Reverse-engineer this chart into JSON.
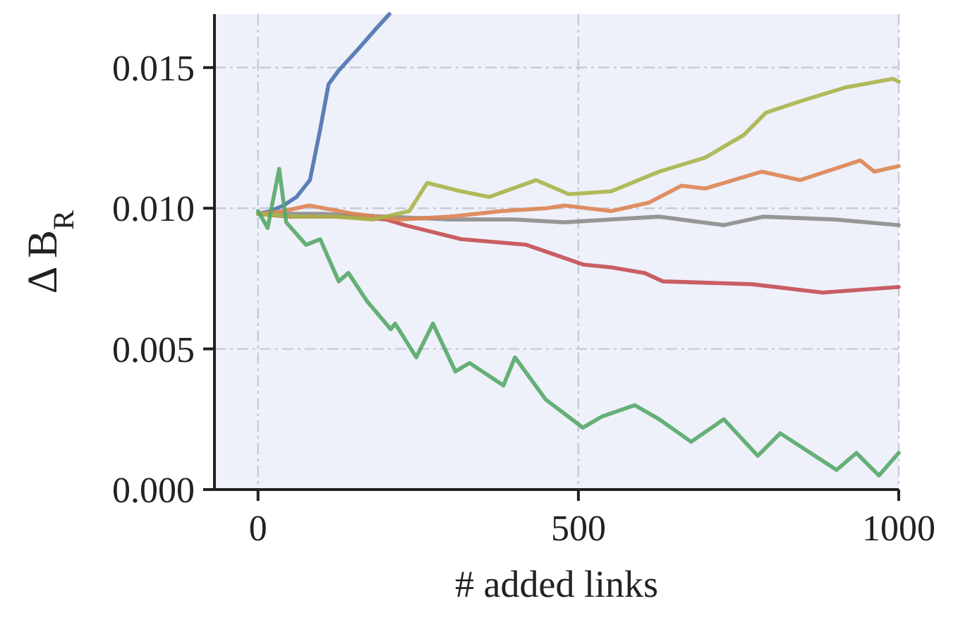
{
  "chart_data": {
    "type": "line",
    "xlabel": "# added links",
    "ylabel": "Δ B$_{R}$",
    "xlim": [
      -68,
      1000
    ],
    "ylim": [
      0,
      0.0169
    ],
    "xticks": [
      0,
      500,
      1000
    ],
    "yticks": [
      {
        "value": 0,
        "label": "0.000"
      },
      {
        "value": 0.005,
        "label": "0.005"
      },
      {
        "value": 0.01,
        "label": "0.010"
      },
      {
        "value": 0.015,
        "label": "0.015"
      }
    ],
    "grid": true,
    "line_style": "solid",
    "marker": "none",
    "series": [
      {
        "color": "#4c72b0",
        "x": [
          0,
          20,
          40,
          60,
          81,
          97,
          110,
          126,
          154,
          185,
          205
        ],
        "values": [
          0.0098,
          0.0099,
          0.0101,
          0.0104,
          0.011,
          0.0128,
          0.0144,
          0.0149,
          0.0156,
          0.0164,
          0.0169
        ]
      },
      {
        "color": "#c44e52",
        "x": [
          0,
          50,
          100,
          150,
          200,
          229,
          317,
          419,
          507,
          551,
          603,
          632,
          771,
          881,
          1000
        ],
        "values": [
          0.0098,
          0.0097,
          0.0097,
          0.0097,
          0.0096,
          0.0094,
          0.0089,
          0.0087,
          0.008,
          0.0079,
          0.0077,
          0.0074,
          0.0073,
          0.007,
          0.0072
        ]
      },
      {
        "color": "#8c8c8c",
        "x": [
          0,
          100,
          200,
          300,
          400,
          478,
          551,
          626,
          727,
          788,
          900,
          1000
        ],
        "values": [
          0.0098,
          0.0098,
          0.0097,
          0.0096,
          0.0096,
          0.0095,
          0.0096,
          0.0097,
          0.0094,
          0.0097,
          0.0096,
          0.0094
        ]
      },
      {
        "color": "#dd8452",
        "x": [
          0,
          40,
          80,
          150,
          220,
          300,
          380,
          450,
          478,
          551,
          610,
          661,
          698,
          786,
          846,
          940,
          962,
          1000
        ],
        "values": [
          0.0098,
          0.0099,
          0.0101,
          0.0098,
          0.0096,
          0.0097,
          0.0099,
          0.01,
          0.0101,
          0.0099,
          0.0102,
          0.0108,
          0.0107,
          0.0113,
          0.011,
          0.0117,
          0.0113,
          0.0115
        ]
      },
      {
        "color": "#a8b44a",
        "x": [
          0,
          60,
          120,
          180,
          236,
          264,
          317,
          361,
          434,
          485,
          551,
          626,
          698,
          758,
          793,
          846,
          918,
          991,
          1000
        ],
        "values": [
          0.0098,
          0.0097,
          0.0097,
          0.0096,
          0.0099,
          0.0109,
          0.0106,
          0.0104,
          0.011,
          0.0105,
          0.0106,
          0.0113,
          0.0118,
          0.0126,
          0.0134,
          0.0138,
          0.0143,
          0.0146,
          0.0145
        ]
      },
      {
        "color": "#55a868",
        "x": [
          0,
          15,
          33,
          44,
          75,
          97,
          126,
          141,
          170,
          207,
          214,
          247,
          273,
          308,
          330,
          383,
          401,
          449,
          478,
          507,
          537,
          588,
          626,
          676,
          727,
          780,
          815,
          903,
          934,
          969,
          996,
          1000
        ],
        "values": [
          0.0099,
          0.0093,
          0.0114,
          0.0095,
          0.0087,
          0.0089,
          0.0074,
          0.0077,
          0.0067,
          0.0057,
          0.0059,
          0.0047,
          0.0059,
          0.0042,
          0.0045,
          0.0037,
          0.0047,
          0.0032,
          0.0027,
          0.0022,
          0.0026,
          0.003,
          0.0025,
          0.0017,
          0.0025,
          0.0012,
          0.002,
          0.0007,
          0.0013,
          0.0005,
          0.0012,
          0.0013
        ]
      }
    ]
  }
}
